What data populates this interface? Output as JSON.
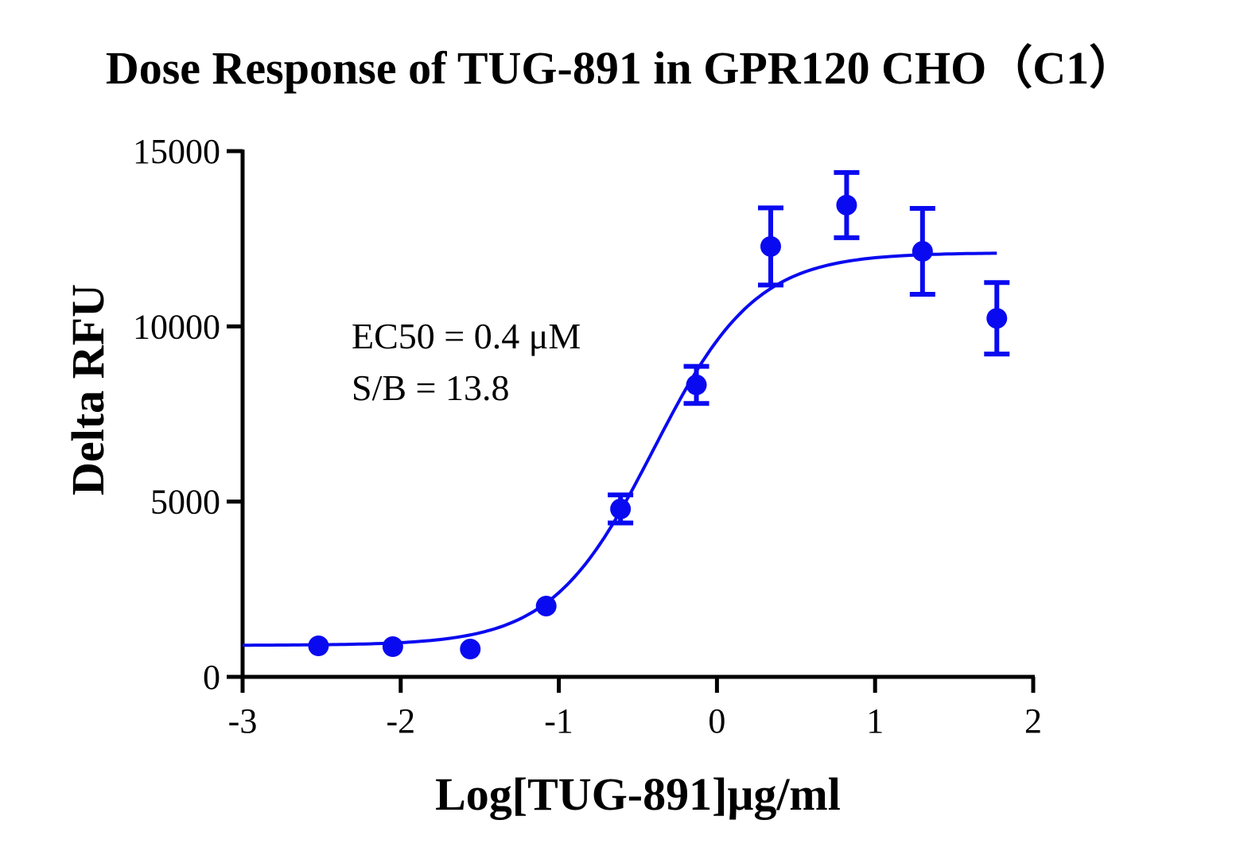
{
  "chart_data": {
    "type": "scatter",
    "title": "Dose Response of TUG-891 in GPR120 CHO（C1）",
    "xlabel": "Log[TUG-891]μg/ml",
    "ylabel": "Delta RFU",
    "xlim": [
      -3,
      2
    ],
    "ylim": [
      0,
      15000
    ],
    "xticks": [
      "-3",
      "-2",
      "-1",
      "0",
      "1",
      "2"
    ],
    "yticks": [
      "0",
      "5000",
      "10000",
      "15000"
    ],
    "grid": false,
    "color": "#0a0af0",
    "annotations": [
      "EC50 = 0.4 μM",
      "S/B = 13.8"
    ],
    "points": [
      {
        "x": -2.52,
        "y": 885,
        "err": 0
      },
      {
        "x": -2.05,
        "y": 862,
        "err": 0
      },
      {
        "x": -1.56,
        "y": 794,
        "err": 0
      },
      {
        "x": -1.08,
        "y": 2020,
        "err": 0
      },
      {
        "x": -0.61,
        "y": 4790,
        "err": 400
      },
      {
        "x": -0.13,
        "y": 8330,
        "err": 530
      },
      {
        "x": 0.34,
        "y": 12280,
        "err": 1100
      },
      {
        "x": 0.82,
        "y": 13460,
        "err": 930
      },
      {
        "x": 1.3,
        "y": 12140,
        "err": 1225
      },
      {
        "x": 1.77,
        "y": 10230,
        "err": 1020
      }
    ],
    "fit": {
      "model": "four-parameter logistic",
      "bottom": 900,
      "top": 12100,
      "logEC50": -0.4,
      "hill": 1.35,
      "xrange": [
        -3,
        1.77
      ]
    }
  }
}
